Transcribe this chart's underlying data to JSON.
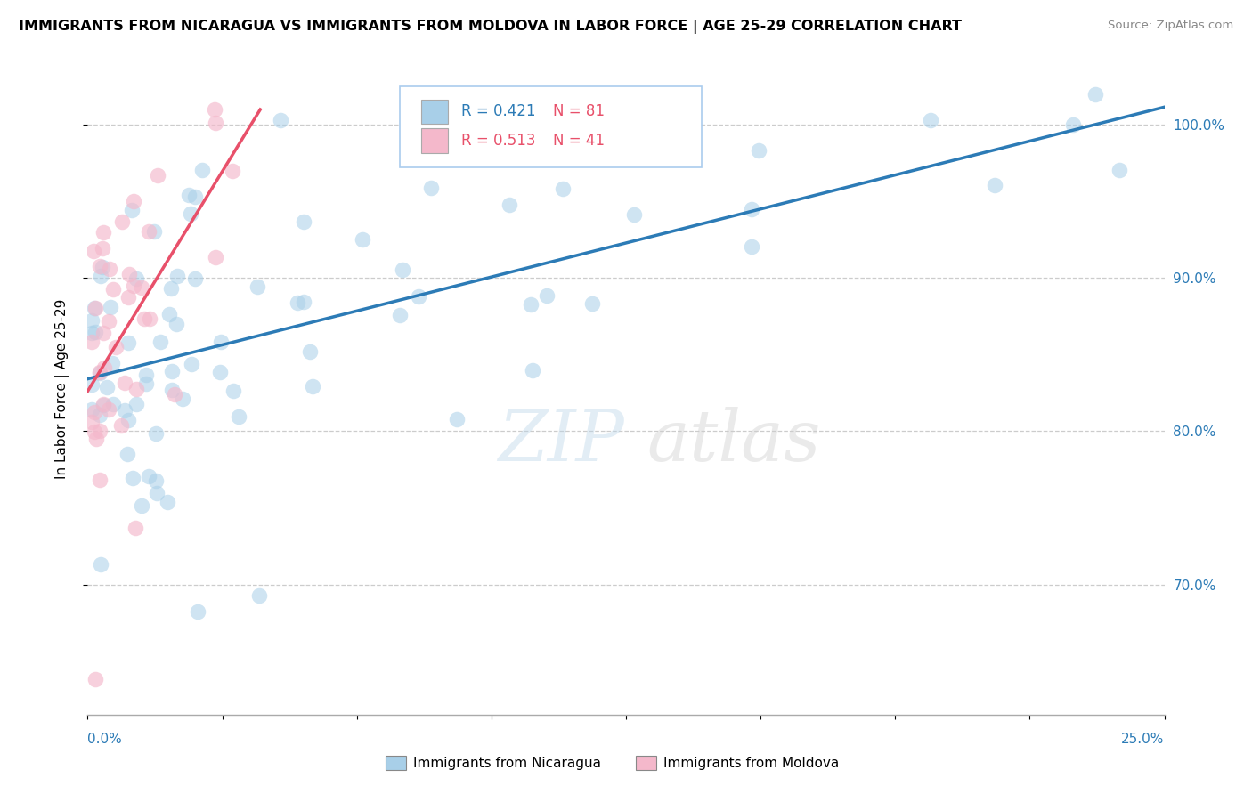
{
  "title": "IMMIGRANTS FROM NICARAGUA VS IMMIGRANTS FROM MOLDOVA IN LABOR FORCE | AGE 25-29 CORRELATION CHART",
  "source": "Source: ZipAtlas.com",
  "ylabel": "In Labor Force | Age 25-29",
  "legend_label_blue": "Immigrants from Nicaragua",
  "legend_label_pink": "Immigrants from Moldova",
  "R_blue": 0.421,
  "N_blue": 81,
  "R_pink": 0.513,
  "N_pink": 41,
  "color_blue": "#a8cfe8",
  "color_pink": "#f4b8cb",
  "line_color_blue": "#2c7bb6",
  "line_color_pink": "#e8506a",
  "ytick_values": [
    0.7,
    0.8,
    0.9,
    1.0
  ],
  "xmin": 0.0,
  "xmax": 0.25,
  "ymin": 0.615,
  "ymax": 1.04,
  "blue_intercept": 0.828,
  "blue_slope": 0.7,
  "pink_intercept": 0.833,
  "pink_slope": 4.5
}
